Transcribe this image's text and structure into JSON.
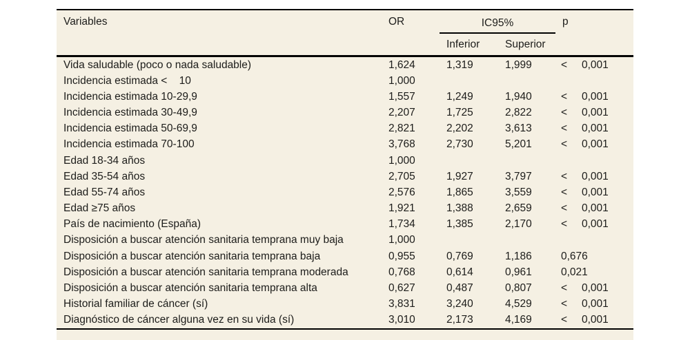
{
  "colors": {
    "page_background": "#ffffff",
    "panel_background": "#f5f0e3",
    "text": "#1c1c1a",
    "border": "#000000"
  },
  "table": {
    "headers": {
      "variables": "Variables",
      "or": "OR",
      "ic95": "IC95%",
      "inferior": "Inferior",
      "superior": "Superior",
      "p": "p"
    },
    "rows": [
      {
        "label": "Vida saludable (poco o nada saludable)",
        "or": "1,624",
        "inf": "1,319",
        "sup": "1,999",
        "p_prefix": "<",
        "p": "0,001"
      },
      {
        "label": "Incidencia estimada <    10",
        "or": "1,000",
        "inf": "",
        "sup": "",
        "p_prefix": "",
        "p": ""
      },
      {
        "label": "Incidencia estimada 10-29,9",
        "or": "1,557",
        "inf": "1,249",
        "sup": "1,940",
        "p_prefix": "<",
        "p": "0,001"
      },
      {
        "label": "Incidencia estimada 30-49,9",
        "or": "2,207",
        "inf": "1,725",
        "sup": "2,822",
        "p_prefix": "<",
        "p": "0,001"
      },
      {
        "label": "Incidencia estimada 50-69,9",
        "or": "2,821",
        "inf": "2,202",
        "sup": "3,613",
        "p_prefix": "<",
        "p": "0,001"
      },
      {
        "label": "Incidencia estimada 70-100",
        "or": "3,768",
        "inf": "2,730",
        "sup": "5,201",
        "p_prefix": "<",
        "p": "0,001"
      },
      {
        "label": "Edad 18-34 años",
        "or": "1,000",
        "inf": "",
        "sup": "",
        "p_prefix": "",
        "p": ""
      },
      {
        "label": "Edad 35-54 años",
        "or": "2,705",
        "inf": "1,927",
        "sup": "3,797",
        "p_prefix": "<",
        "p": "0,001"
      },
      {
        "label": "Edad 55-74 años",
        "or": "2,576",
        "inf": "1,865",
        "sup": "3,559",
        "p_prefix": "<",
        "p": "0,001"
      },
      {
        "label": "Edad ≥75 años",
        "or": "1,921",
        "inf": "1,388",
        "sup": "2,659",
        "p_prefix": "<",
        "p": "0,001"
      },
      {
        "label": "País de nacimiento (España)",
        "or": "1,734",
        "inf": "1,385",
        "sup": "2,170",
        "p_prefix": "<",
        "p": "0,001"
      },
      {
        "label": "Disposición a buscar atención sanitaria temprana muy baja",
        "or": "1,000",
        "inf": "",
        "sup": "",
        "p_prefix": "",
        "p": ""
      },
      {
        "label": "Disposición a buscar atención sanitaria temprana baja",
        "or": "0,955",
        "inf": "0,769",
        "sup": "1,186",
        "p_prefix": "",
        "p": "0,676"
      },
      {
        "label": "Disposición a buscar atención sanitaria temprana moderada",
        "or": "0,768",
        "inf": "0,614",
        "sup": "0,961",
        "p_prefix": "",
        "p": "0,021"
      },
      {
        "label": "Disposición a buscar atención sanitaria temprana alta",
        "or": "0,627",
        "inf": "0,487",
        "sup": "0,807",
        "p_prefix": "<",
        "p": "0,001"
      },
      {
        "label": "Historial familiar de cáncer (sí)",
        "or": "3,831",
        "inf": "3,240",
        "sup": "4,529",
        "p_prefix": "<",
        "p": "0,001"
      },
      {
        "label": "Diagnóstico de cáncer alguna vez en su vida (sí)",
        "or": "3,010",
        "inf": "2,173",
        "sup": "4,169",
        "p_prefix": "<",
        "p": "0,001"
      }
    ]
  }
}
